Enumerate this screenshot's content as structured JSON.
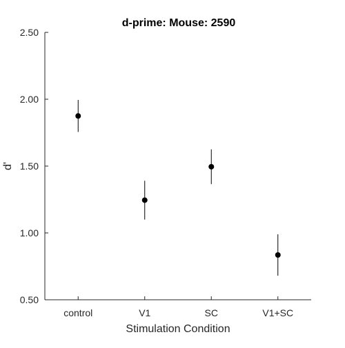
{
  "chart_data": {
    "type": "scatter",
    "title": "d-prime: Mouse: 2590",
    "xlabel": "Stimulation Condition",
    "ylabel": "d'",
    "categories": [
      "control",
      "V1",
      "SC",
      "V1+SC"
    ],
    "series": [
      {
        "values": [
          1.875,
          1.245,
          1.495,
          0.835
        ],
        "error_low": [
          1.755,
          1.1,
          1.365,
          0.68
        ],
        "error_high": [
          1.995,
          1.39,
          1.625,
          0.99
        ]
      }
    ],
    "ylim": [
      0.5,
      2.5
    ],
    "yticks": [
      "0.50",
      "1.00",
      "1.50",
      "2.00",
      "2.50"
    ],
    "grid": false,
    "colors": {
      "marker": "#000000",
      "errorbar": "#000000",
      "axis": "#262626"
    }
  }
}
